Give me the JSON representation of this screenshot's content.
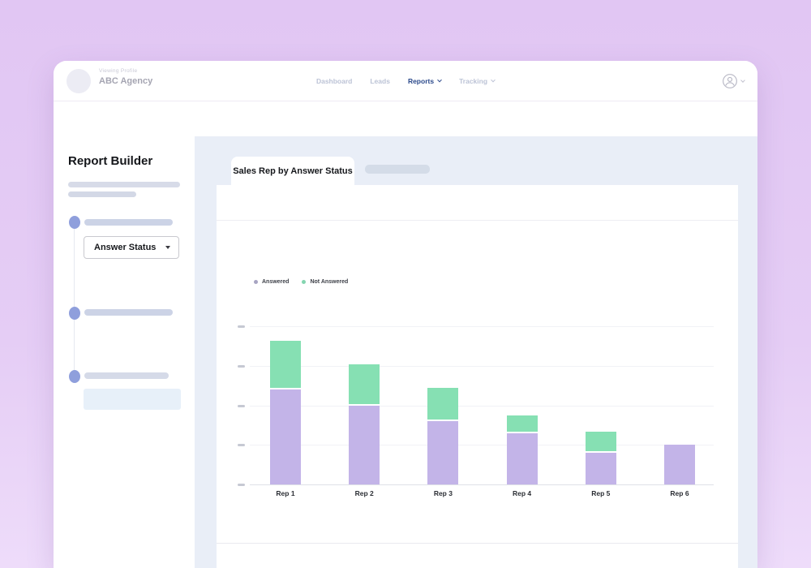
{
  "window": {
    "header": {
      "viewing_profile_label": "Viewing Profile",
      "agency_name": "ABC Agency",
      "nav": [
        {
          "label": "Dashboard",
          "active": false,
          "has_dropdown": false
        },
        {
          "label": "Leads",
          "active": false,
          "has_dropdown": false
        },
        {
          "label": "Reports",
          "active": true,
          "has_dropdown": true
        },
        {
          "label": "Tracking",
          "active": false,
          "has_dropdown": true
        }
      ],
      "user_icon": "account-circle-icon"
    },
    "sidebar": {
      "title": "Report Builder",
      "answer_status_dropdown": {
        "value": "Answer Status"
      }
    },
    "main": {
      "active_tab": "Sales Rep by Answer Status"
    }
  },
  "chart_data": {
    "type": "bar",
    "stacked": true,
    "title": "Sales Rep by Answer Status",
    "categories": [
      "Rep 1",
      "Rep 2",
      "Rep 3",
      "Rep 4",
      "Rep 5",
      "Rep 6"
    ],
    "series": [
      {
        "name": "Answered",
        "color": "#c3b4e8",
        "legend_dot_color": "#a7a4c2",
        "values": [
          24,
          20,
          16,
          13,
          8,
          10
        ]
      },
      {
        "name": "Not Answered",
        "color": "#86e0b3",
        "legend_dot_color": "#84d5b0",
        "values": [
          12,
          10,
          8,
          4,
          5,
          0
        ]
      }
    ],
    "xlabel": "",
    "ylabel": "",
    "ylim": [
      0,
      40
    ],
    "y_tick_interval": 10,
    "y_tick_labels_legible": false,
    "grid": true,
    "legend_position": "top-left"
  },
  "colors": {
    "page_background": "#e3c9f5",
    "main_background": "#e9eef7",
    "nav_active": "#2c4a8c",
    "nav_inactive": "#bcc3d6",
    "step_dot": "#8f9fdc",
    "skeleton": "#d4dbe8",
    "bar_answered": "#c3b4e8",
    "bar_not_answered": "#86e0b3"
  }
}
